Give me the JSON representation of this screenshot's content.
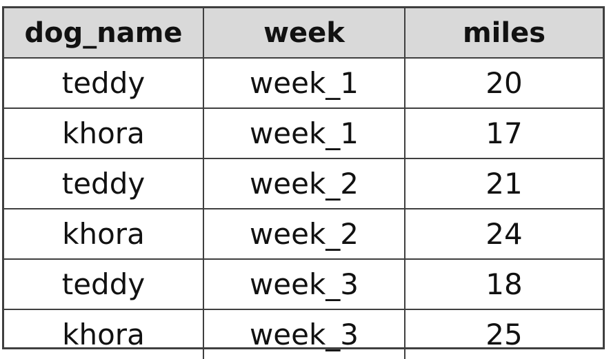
{
  "table": {
    "headers": [
      "dog_name",
      "week",
      "miles"
    ],
    "rows": [
      [
        "teddy",
        "week_1",
        "20"
      ],
      [
        "khora",
        "week_1",
        "17"
      ],
      [
        "teddy",
        "week_2",
        "21"
      ],
      [
        "khora",
        "week_2",
        "24"
      ],
      [
        "teddy",
        "week_3",
        "18"
      ],
      [
        "khora",
        "week_3",
        "25"
      ]
    ]
  }
}
